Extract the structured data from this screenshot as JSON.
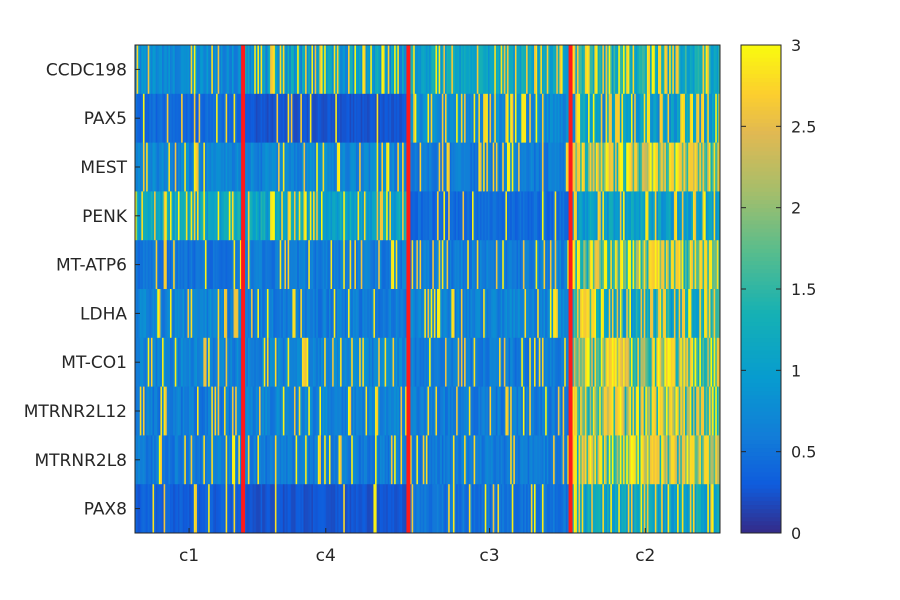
{
  "chart_data": {
    "type": "heatmap",
    "title": "",
    "xlabel": "",
    "ylabel": "",
    "rows": [
      "CCDC198",
      "PAX5",
      "MEST",
      "PENK",
      "MT-ATP6",
      "LDHA",
      "MT-CO1",
      "MTRNR2L12",
      "MTRNR2L8",
      "PAX8"
    ],
    "clusters": [
      {
        "name": "c1",
        "cells": 68
      },
      {
        "name": "c4",
        "cells": 104
      },
      {
        "name": "c3",
        "cells": 102
      },
      {
        "name": "c2",
        "cells": 94
      }
    ],
    "boundary_color": "#ff1a1a",
    "color_range": [
      0,
      3
    ],
    "colorbar_ticks": [
      "0",
      "0.5",
      "1",
      "1.5",
      "2",
      "2.5",
      "3"
    ],
    "colormap": "parula",
    "mean_expression": [
      [
        0.9,
        1.6,
        1.3,
        1.5
      ],
      [
        0.5,
        0.3,
        0.9,
        1.6
      ],
      [
        0.8,
        0.8,
        0.7,
        2.7
      ],
      [
        1.3,
        1.3,
        0.5,
        1.2
      ],
      [
        0.6,
        0.7,
        0.7,
        2.4
      ],
      [
        0.8,
        0.7,
        0.8,
        1.9
      ],
      [
        0.8,
        0.8,
        0.7,
        2.6
      ],
      [
        0.7,
        0.8,
        0.7,
        2.5
      ],
      [
        0.7,
        0.7,
        0.7,
        2.6
      ],
      [
        0.4,
        0.3,
        0.6,
        1.3
      ]
    ]
  }
}
